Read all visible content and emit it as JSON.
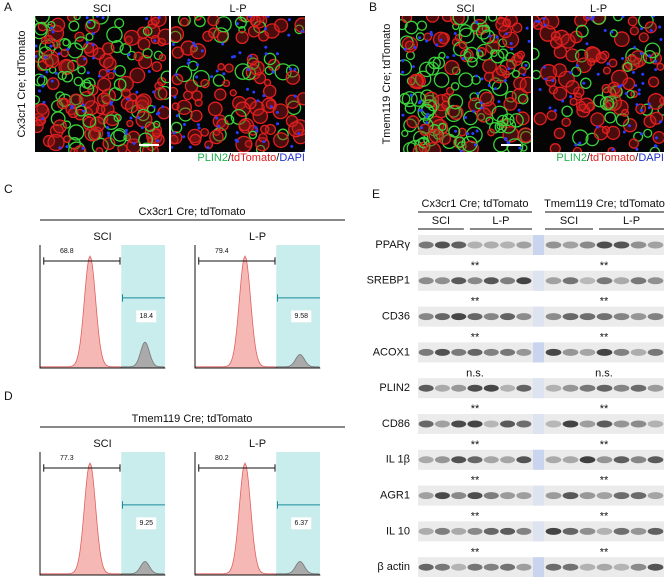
{
  "A": {
    "label": "A",
    "genotype": "Cx3cr1 Cre; tdTomato",
    "conditions": [
      "SCI",
      "L-P"
    ],
    "stain": [
      "PLIN2",
      "/",
      "tdTomato",
      "/",
      "DAPI"
    ]
  },
  "B": {
    "label": "B",
    "genotype": "Tmem119 Cre; tdTomato",
    "conditions": [
      "SCI",
      "L-P"
    ],
    "stain": [
      "PLIN2",
      "/",
      "tdTomato",
      "/",
      "DAPI"
    ]
  },
  "C": {
    "label": "C",
    "genotype": "Cx3cr1 Cre; tdTomato",
    "plots": [
      {
        "condition": "SCI",
        "gate_low": 68.8,
        "gate_high": 18.4
      },
      {
        "condition": "L-P",
        "gate_low": 79.4,
        "gate_high": 9.58
      }
    ]
  },
  "D": {
    "label": "D",
    "genotype": "Tmem119 Cre; tdTomato",
    "plots": [
      {
        "condition": "SCI",
        "gate_low": 77.3,
        "gate_high": 9.25
      },
      {
        "condition": "L-P",
        "gate_low": 80.2,
        "gate_high": 6.37
      }
    ]
  },
  "E": {
    "label": "E",
    "groups": [
      "Cx3cr1 Cre; tdTomato",
      "Tmem119 Cre; tdTomato"
    ],
    "conditions": [
      "SCI",
      "L-P",
      "SCI",
      "L-P"
    ],
    "rows": [
      {
        "protein": "PPARγ",
        "significance": [
          "**",
          "**"
        ]
      },
      {
        "protein": "SREBP1",
        "significance": [
          "**",
          "**"
        ]
      },
      {
        "protein": "CD36",
        "significance": [
          "**",
          "**"
        ]
      },
      {
        "protein": "ACOX1",
        "significance": [
          "n.s.",
          "n.s."
        ]
      },
      {
        "protein": "PLIN2",
        "significance": [
          "**",
          "**"
        ]
      },
      {
        "protein": "CD86",
        "significance": [
          "**",
          "**"
        ]
      },
      {
        "protein": "IL 1β",
        "significance": [
          "**",
          "**"
        ]
      },
      {
        "protein": "AGR1",
        "significance": [
          "**",
          "**"
        ]
      },
      {
        "protein": "IL 10",
        "significance": [
          "**",
          "**"
        ]
      },
      {
        "protein": "β actin"
      }
    ]
  }
}
